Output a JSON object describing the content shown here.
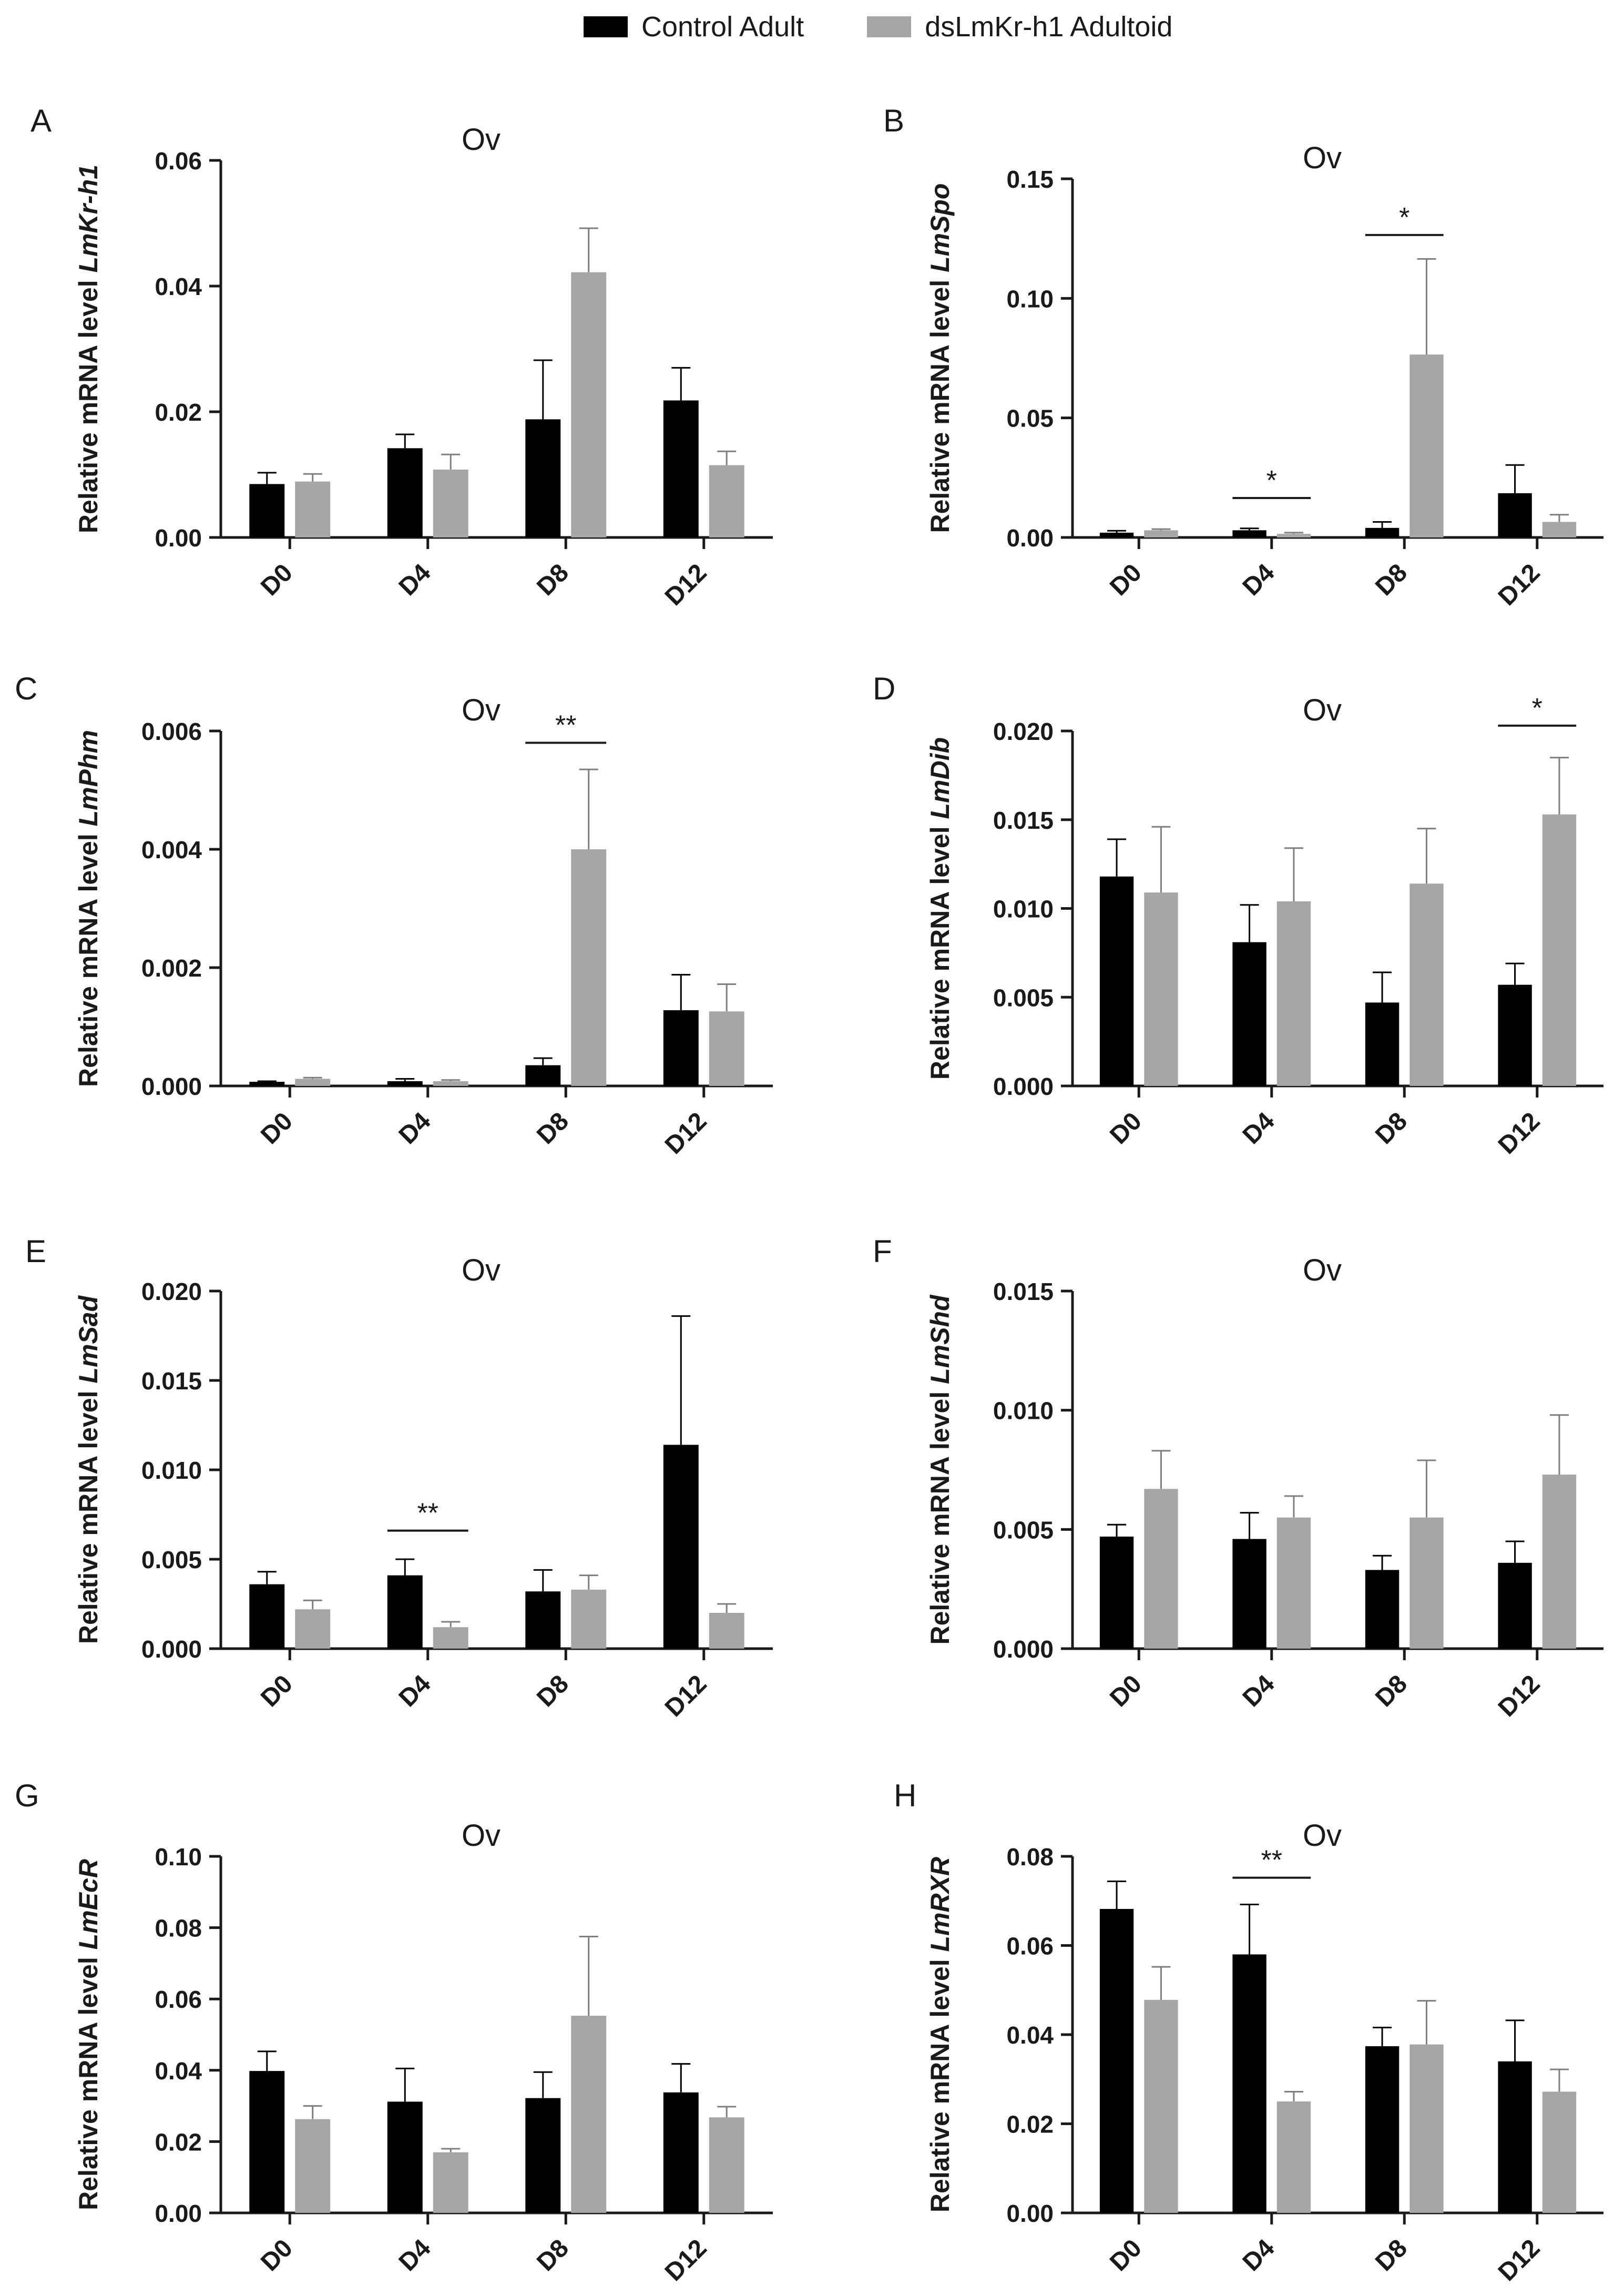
{
  "legend": [
    {
      "label": "Control Adult",
      "color": "#000000"
    },
    {
      "label": "dsLmKr-h1 Adultoid",
      "color": "#a6a6a6"
    }
  ],
  "colors": {
    "control": "#000000",
    "treated": "#a6a6a6",
    "axis": "#1a1a1a"
  },
  "chart_data": [
    {
      "panel": "A",
      "type": "bar",
      "title": "Ov",
      "ylabel_prefix": "Relative mRNA level ",
      "gene": "LmKr-h1",
      "categories": [
        "D0",
        "D4",
        "D8",
        "D12"
      ],
      "ylim": [
        0,
        0.06
      ],
      "yticks": [
        "0.00",
        "0.02",
        "0.04",
        "0.06"
      ],
      "series": [
        {
          "name": "Control Adult",
          "values": [
            0.0085,
            0.0142,
            0.0188,
            0.0218
          ],
          "errors": [
            0.0018,
            0.0022,
            0.0094,
            0.0052
          ]
        },
        {
          "name": "dsLmKr-h1 Adultoid",
          "values": [
            0.0089,
            0.0108,
            0.0422,
            0.0115
          ],
          "errors": [
            0.0012,
            0.0024,
            0.007,
            0.0022
          ]
        }
      ],
      "significance": []
    },
    {
      "panel": "B",
      "type": "bar",
      "title": "Ov",
      "ylabel_prefix": "Relative mRNA level ",
      "gene": "LmSpo",
      "categories": [
        "D0",
        "D4",
        "D8",
        "D12"
      ],
      "ylim": [
        0,
        0.15
      ],
      "yticks": [
        "0.00",
        "0.05",
        "0.10",
        "0.15"
      ],
      "series": [
        {
          "name": "Control Adult",
          "values": [
            0.002,
            0.003,
            0.004,
            0.0185
          ],
          "errors": [
            0.0008,
            0.0008,
            0.0025,
            0.0118
          ]
        },
        {
          "name": "dsLmKr-h1 Adultoid",
          "values": [
            0.003,
            0.0015,
            0.0765,
            0.0065
          ],
          "errors": [
            0.0005,
            0.0005,
            0.04,
            0.003
          ]
        }
      ],
      "significance": [
        {
          "category": "D4",
          "label": "*",
          "y": 0.0165
        },
        {
          "category": "D8",
          "label": "*",
          "y": 0.1265
        }
      ]
    },
    {
      "panel": "C",
      "type": "bar",
      "title": "Ov",
      "ylabel_prefix": "Relative mRNA level ",
      "gene": "LmPhm",
      "categories": [
        "D0",
        "D4",
        "D8",
        "D12"
      ],
      "ylim": [
        0,
        0.006
      ],
      "yticks": [
        "0.000",
        "0.002",
        "0.004",
        "0.006"
      ],
      "series": [
        {
          "name": "Control Adult",
          "values": [
            7e-05,
            8e-05,
            0.00035,
            0.00128
          ],
          "errors": [
            1e-05,
            4e-05,
            0.00012,
            0.0006
          ]
        },
        {
          "name": "dsLmKr-h1 Adultoid",
          "values": [
            0.00012,
            8e-05,
            0.004,
            0.00126
          ],
          "errors": [
            2e-05,
            2e-05,
            0.00135,
            0.00046
          ]
        }
      ],
      "significance": [
        {
          "category": "D8",
          "label": "**",
          "y": 0.0058
        }
      ]
    },
    {
      "panel": "D",
      "type": "bar",
      "title": "Ov",
      "ylabel_prefix": "Relative mRNA level ",
      "gene": "LmDib",
      "categories": [
        "D0",
        "D4",
        "D8",
        "D12"
      ],
      "ylim": [
        0,
        0.02
      ],
      "yticks": [
        "0.000",
        "0.005",
        "0.010",
        "0.015",
        "0.020"
      ],
      "series": [
        {
          "name": "Control Adult",
          "values": [
            0.0118,
            0.0081,
            0.0047,
            0.0057
          ],
          "errors": [
            0.0021,
            0.0021,
            0.0017,
            0.0012
          ]
        },
        {
          "name": "dsLmKr-h1 Adultoid",
          "values": [
            0.0109,
            0.0104,
            0.0114,
            0.0153
          ],
          "errors": [
            0.0037,
            0.003,
            0.0031,
            0.0032
          ]
        }
      ],
      "significance": [
        {
          "category": "D12",
          "label": "*",
          "y": 0.0203
        }
      ]
    },
    {
      "panel": "E",
      "type": "bar",
      "title": "Ov",
      "ylabel_prefix": "Relative mRNA level ",
      "gene": "LmSad",
      "categories": [
        "D0",
        "D4",
        "D8",
        "D12"
      ],
      "ylim": [
        0,
        0.02
      ],
      "yticks": [
        "0.000",
        "0.005",
        "0.010",
        "0.015",
        "0.020"
      ],
      "series": [
        {
          "name": "Control Adult",
          "values": [
            0.0036,
            0.0041,
            0.0032,
            0.0114
          ],
          "errors": [
            0.0007,
            0.0009,
            0.0012,
            0.0072
          ]
        },
        {
          "name": "dsLmKr-h1 Adultoid",
          "values": [
            0.0022,
            0.0012,
            0.0033,
            0.002
          ],
          "errors": [
            0.0005,
            0.0003,
            0.0008,
            0.0005
          ]
        }
      ],
      "significance": [
        {
          "category": "D4",
          "label": "**",
          "y": 0.0066
        }
      ]
    },
    {
      "panel": "F",
      "type": "bar",
      "title": "Ov",
      "ylabel_prefix": "Relative mRNA level ",
      "gene": "LmShd",
      "categories": [
        "D0",
        "D4",
        "D8",
        "D12"
      ],
      "ylim": [
        0,
        0.015
      ],
      "yticks": [
        "0.000",
        "0.005",
        "0.010",
        "0.015"
      ],
      "series": [
        {
          "name": "Control Adult",
          "values": [
            0.0047,
            0.0046,
            0.0033,
            0.0036
          ],
          "errors": [
            0.0005,
            0.0011,
            0.0006,
            0.0009
          ]
        },
        {
          "name": "dsLmKr-h1 Adultoid",
          "values": [
            0.0067,
            0.0055,
            0.0055,
            0.0073
          ],
          "errors": [
            0.0016,
            0.0009,
            0.0024,
            0.0025
          ]
        }
      ],
      "significance": []
    },
    {
      "panel": "G",
      "type": "bar",
      "title": "Ov",
      "ylabel_prefix": "Relative mRNA level ",
      "gene": "LmEcR",
      "categories": [
        "D0",
        "D4",
        "D8",
        "D12"
      ],
      "ylim": [
        0,
        0.1
      ],
      "yticks": [
        "0.00",
        "0.02",
        "0.04",
        "0.06",
        "0.08",
        "0.10"
      ],
      "series": [
        {
          "name": "Control Adult",
          "values": [
            0.0398,
            0.0312,
            0.0322,
            0.0338
          ],
          "errors": [
            0.0055,
            0.0093,
            0.0073,
            0.008
          ]
        },
        {
          "name": "dsLmKr-h1 Adultoid",
          "values": [
            0.0263,
            0.017,
            0.0553,
            0.0268
          ],
          "errors": [
            0.0037,
            0.001,
            0.0222,
            0.003
          ]
        }
      ],
      "significance": []
    },
    {
      "panel": "H",
      "type": "bar",
      "title": "Ov",
      "ylabel_prefix": "Relative mRNA level ",
      "gene": "LmRXR",
      "categories": [
        "D0",
        "D4",
        "D8",
        "D12"
      ],
      "ylim": [
        0,
        0.08
      ],
      "yticks": [
        "0.00",
        "0.02",
        "0.04",
        "0.06",
        "0.08"
      ],
      "series": [
        {
          "name": "Control Adult",
          "values": [
            0.0682,
            0.058,
            0.0374,
            0.034
          ],
          "errors": [
            0.0062,
            0.0112,
            0.0042,
            0.0092
          ]
        },
        {
          "name": "dsLmKr-h1 Adultoid",
          "values": [
            0.0478,
            0.025,
            0.0378,
            0.0272
          ],
          "errors": [
            0.0074,
            0.0022,
            0.0098,
            0.005
          ]
        }
      ],
      "significance": [
        {
          "category": "D4",
          "label": "**",
          "y": 0.0752
        }
      ]
    }
  ]
}
